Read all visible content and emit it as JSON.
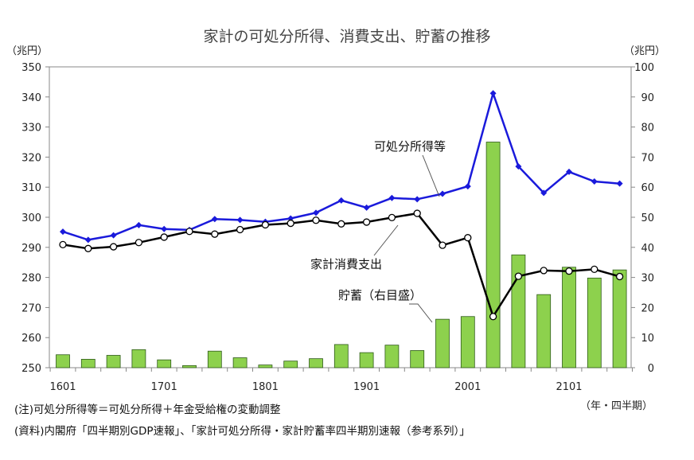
{
  "chart_data": {
    "type": "bar+line",
    "title": "家計の可処分所得、消費支出、貯蓄の推移",
    "left_unit": "（兆円）",
    "right_unit": "（兆円）",
    "x_unit": "（年・四半期）",
    "x_tick_labels": [
      "1601",
      "1701",
      "1801",
      "1901",
      "2001",
      "2101"
    ],
    "left_axis": {
      "min": 250,
      "max": 350,
      "step": 10
    },
    "right_axis": {
      "min": 0,
      "max": 100,
      "step": 10
    },
    "quarters": [
      "1601",
      "1602",
      "1603",
      "1604",
      "1701",
      "1702",
      "1703",
      "1704",
      "1801",
      "1802",
      "1803",
      "1804",
      "1901",
      "1902",
      "1903",
      "1904",
      "2001",
      "2002",
      "2003",
      "2004",
      "2101",
      "2102",
      "2103"
    ],
    "series": [
      {
        "name": "可処分所得等",
        "axis": "left",
        "kind": "line",
        "color": "#1a1adb",
        "values": [
          295.2,
          292.5,
          294.0,
          297.4,
          296.1,
          295.8,
          299.4,
          299.1,
          298.5,
          299.6,
          301.5,
          305.6,
          303.2,
          306.4,
          306.0,
          307.8,
          310.3,
          341.2,
          316.9,
          308.1,
          315.1,
          311.9,
          311.2
        ]
      },
      {
        "name": "家計消費支出",
        "axis": "left",
        "kind": "line",
        "color": "#000000",
        "values": [
          290.9,
          289.6,
          290.2,
          291.6,
          293.4,
          295.3,
          294.4,
          295.9,
          297.5,
          298.0,
          299.0,
          297.8,
          298.4,
          299.9,
          301.3,
          290.7,
          293.2,
          267.0,
          280.4,
          282.3,
          282.1,
          282.7,
          280.3
        ]
      },
      {
        "name": "貯蓄（右目盛）",
        "axis": "right",
        "kind": "bar",
        "color": "#8dd14d",
        "values": [
          4.3,
          2.8,
          4.1,
          6.0,
          2.6,
          0.7,
          5.5,
          3.3,
          0.9,
          2.2,
          3.0,
          7.7,
          5.0,
          7.5,
          5.7,
          16.1,
          17.0,
          75.0,
          37.5,
          24.3,
          33.4,
          29.8,
          32.5
        ]
      }
    ],
    "annotations": [
      {
        "series": "可処分所得等",
        "text": "可処分所得等"
      },
      {
        "series": "家計消費支出",
        "text": "家計消費支出"
      },
      {
        "series": "貯蓄（右目盛）",
        "text": "貯蓄（右目盛）"
      }
    ]
  },
  "notes": {
    "note1": "(注)可処分所得等＝可処分所得＋年金受給権の変動調整",
    "note2": "(資料)内閣府「四半期別GDP速報」、「家計可処分所得・家計貯蓄率四半期別速報（参考系列）」"
  }
}
